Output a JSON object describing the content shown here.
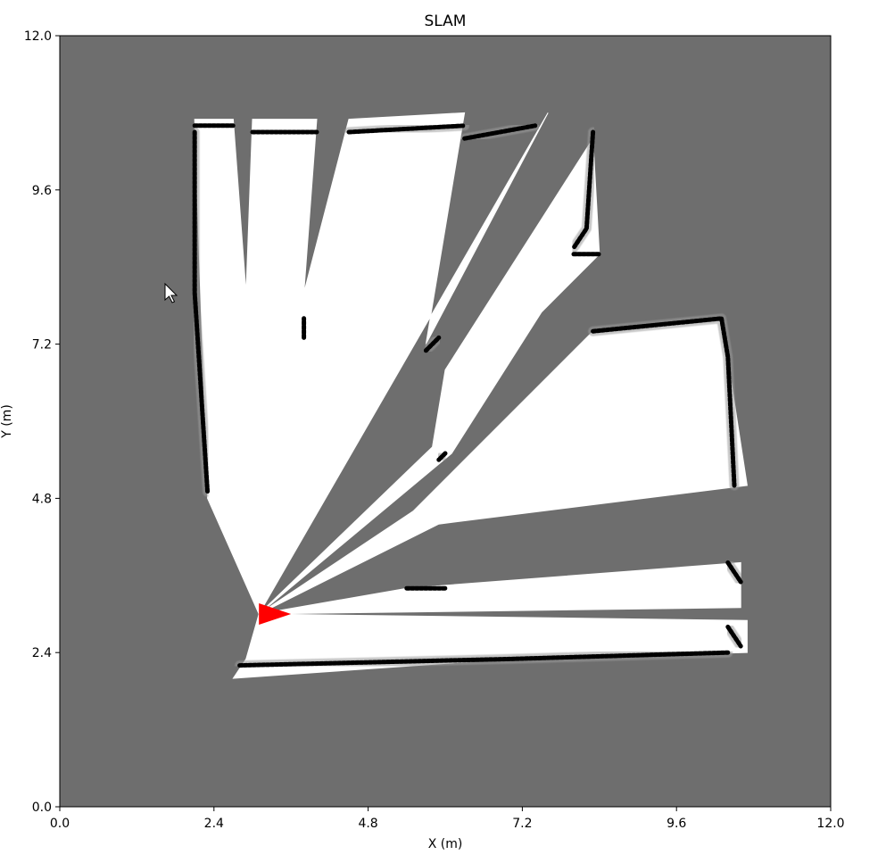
{
  "chart_data": {
    "type": "heatmap",
    "title": "SLAM",
    "xlabel": "X (m)",
    "ylabel": "Y (m)",
    "xlim": [
      0.0,
      12.0
    ],
    "ylim": [
      0.0,
      12.0
    ],
    "xticks": [
      "0.0",
      "2.4",
      "4.8",
      "7.2",
      "9.6",
      "12.0"
    ],
    "yticks": [
      "0.0",
      "2.4",
      "4.8",
      "7.2",
      "9.6",
      "12.0"
    ],
    "colormap": "grayscale occupancy grid (gray = unknown, white = free, black = occupied)",
    "unknown_color": "#6e6e6e",
    "free_color": "#ffffff",
    "occupied_color": "#000000",
    "robot": {
      "x": 3.1,
      "y": 3.0,
      "heading_deg": 0,
      "color": "#ff0000"
    },
    "free_regions": [
      {
        "name": "beam-1",
        "polygon": [
          [
            3.1,
            3.0
          ],
          [
            2.3,
            4.8
          ],
          [
            2.1,
            10.7
          ],
          [
            2.7,
            10.7
          ],
          [
            2.9,
            8.0
          ],
          [
            3.0,
            10.7
          ],
          [
            4.0,
            10.7
          ],
          [
            3.8,
            8.0
          ],
          [
            4.5,
            10.7
          ],
          [
            6.3,
            10.8
          ],
          [
            5.7,
            7.2
          ],
          [
            7.6,
            10.8
          ]
        ]
      },
      {
        "name": "beam-2",
        "polygon": [
          [
            3.1,
            3.0
          ],
          [
            5.8,
            5.6
          ],
          [
            6.0,
            6.8
          ],
          [
            8.3,
            10.4
          ],
          [
            8.4,
            8.6
          ],
          [
            7.5,
            7.7
          ],
          [
            6.1,
            5.5
          ]
        ]
      },
      {
        "name": "beam-3",
        "polygon": [
          [
            3.1,
            3.0
          ],
          [
            5.5,
            4.6
          ],
          [
            8.3,
            7.4
          ],
          [
            10.3,
            7.6
          ],
          [
            10.7,
            5.0
          ],
          [
            5.9,
            4.4
          ]
        ]
      },
      {
        "name": "beam-4",
        "polygon": [
          [
            3.1,
            3.0
          ],
          [
            5.4,
            3.4
          ],
          [
            10.6,
            3.8
          ],
          [
            10.6,
            3.1
          ],
          [
            3.1,
            3.0
          ]
        ]
      },
      {
        "name": "beam-5",
        "polygon": [
          [
            3.1,
            3.0
          ],
          [
            10.7,
            2.9
          ],
          [
            10.7,
            2.4
          ],
          [
            7.0,
            2.3
          ],
          [
            2.7,
            2.0
          ],
          [
            2.9,
            2.3
          ]
        ]
      }
    ],
    "walls": [
      [
        [
          2.1,
          10.5
        ],
        [
          2.1,
          8.0
        ],
        [
          2.3,
          4.9
        ]
      ],
      [
        [
          2.1,
          10.6
        ],
        [
          2.7,
          10.6
        ]
      ],
      [
        [
          3.0,
          10.5
        ],
        [
          4.0,
          10.5
        ]
      ],
      [
        [
          4.5,
          10.5
        ],
        [
          6.3,
          10.6
        ]
      ],
      [
        [
          6.3,
          10.4
        ],
        [
          7.4,
          10.6
        ]
      ],
      [
        [
          8.3,
          10.5
        ],
        [
          8.2,
          9.0
        ],
        [
          8.0,
          8.7
        ]
      ],
      [
        [
          3.8,
          7.3
        ],
        [
          3.8,
          7.6
        ]
      ],
      [
        [
          5.7,
          7.1
        ],
        [
          5.9,
          7.3
        ]
      ],
      [
        [
          8.0,
          8.6
        ],
        [
          8.4,
          8.6
        ]
      ],
      [
        [
          8.3,
          7.4
        ],
        [
          10.3,
          7.6
        ],
        [
          10.4,
          7.0
        ],
        [
          10.5,
          5.0
        ]
      ],
      [
        [
          6.0,
          5.5
        ],
        [
          5.9,
          5.4
        ]
      ],
      [
        [
          10.4,
          3.8
        ],
        [
          10.6,
          3.5
        ]
      ],
      [
        [
          5.4,
          3.4
        ],
        [
          6.0,
          3.4
        ]
      ],
      [
        [
          10.4,
          2.8
        ],
        [
          10.6,
          2.5
        ]
      ],
      [
        [
          2.8,
          2.2
        ],
        [
          7.0,
          2.3
        ],
        [
          10.4,
          2.4
        ]
      ]
    ]
  }
}
